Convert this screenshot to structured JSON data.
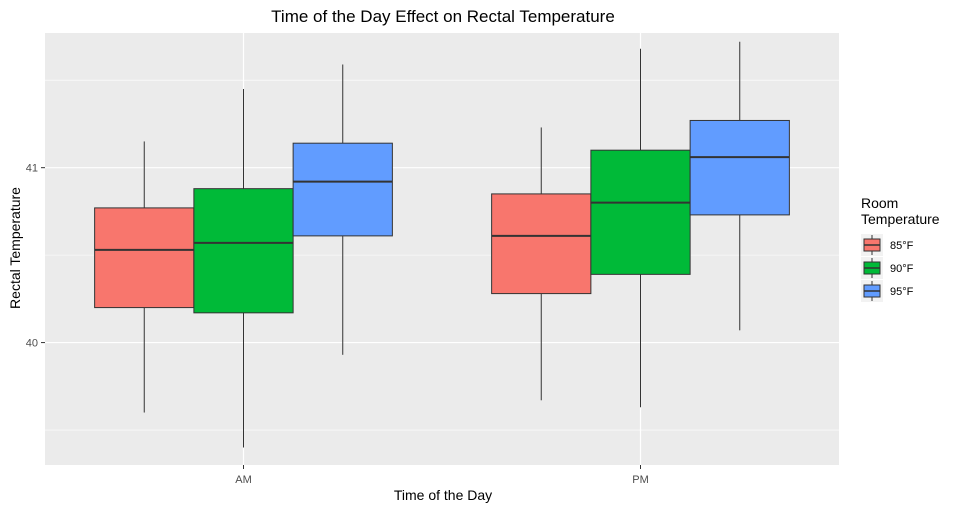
{
  "chart_data": {
    "type": "boxplot",
    "title": "Time of the Day Effect on Rectal Temperature",
    "xlabel": "Time of the Day",
    "ylabel": "Rectal Temperature",
    "ylim": [
      39.3,
      41.77
    ],
    "yticks": [
      40,
      41
    ],
    "categories": [
      "AM",
      "PM"
    ],
    "legend": {
      "title_lines": [
        "Room",
        "Temperature"
      ],
      "placement": "right"
    },
    "grid": true,
    "background": "#ebebeb",
    "series": [
      {
        "name": "85°F",
        "color": "#f8766d",
        "boxes": [
          {
            "category": "AM",
            "min": 39.6,
            "q1": 40.2,
            "median": 40.53,
            "q3": 40.77,
            "max": 41.15
          },
          {
            "category": "PM",
            "min": 39.67,
            "q1": 40.28,
            "median": 40.61,
            "q3": 40.85,
            "max": 41.23
          }
        ]
      },
      {
        "name": "90°F",
        "color": "#00ba38",
        "boxes": [
          {
            "category": "AM",
            "min": 39.4,
            "q1": 40.17,
            "median": 40.57,
            "q3": 40.88,
            "max": 41.45
          },
          {
            "category": "PM",
            "min": 39.63,
            "q1": 40.39,
            "median": 40.8,
            "q3": 41.1,
            "max": 41.68
          }
        ]
      },
      {
        "name": "95°F",
        "color": "#619cff",
        "boxes": [
          {
            "category": "AM",
            "min": 39.93,
            "q1": 40.61,
            "median": 40.92,
            "q3": 41.14,
            "max": 41.59
          },
          {
            "category": "PM",
            "min": 40.07,
            "q1": 40.73,
            "median": 41.06,
            "q3": 41.27,
            "max": 41.72
          }
        ]
      }
    ]
  }
}
